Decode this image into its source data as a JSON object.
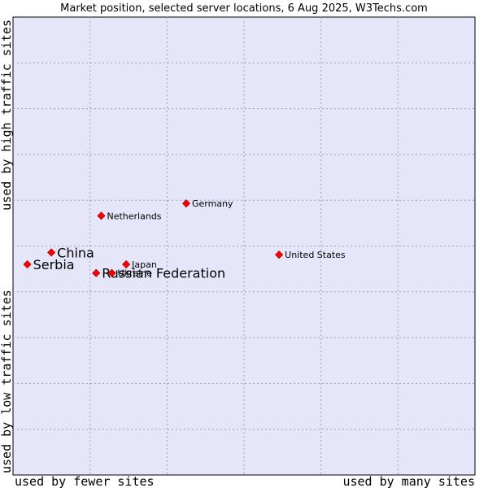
{
  "chart_data": {
    "type": "scatter",
    "title": "Market position, selected server locations, 6 Aug 2025, W3Techs.com",
    "xlabel_left": "used by fewer sites",
    "xlabel_right": "used by many sites",
    "ylabel_top": "used by high traffic sites",
    "ylabel_bottom": "used by low traffic sites",
    "xlim": [
      0,
      100
    ],
    "ylim": [
      0,
      100
    ],
    "grid": true,
    "point_color": "#ff0000",
    "plot_background": "#e6e6fa",
    "points": [
      {
        "label": "Germany",
        "x": 37.5,
        "y": 59.3,
        "emphasis": "normal"
      },
      {
        "label": "Netherlands",
        "x": 19.1,
        "y": 56.6,
        "emphasis": "normal"
      },
      {
        "label": "United States",
        "x": 57.6,
        "y": 48.1,
        "emphasis": "normal"
      },
      {
        "label": "China",
        "x": 8.3,
        "y": 48.6,
        "emphasis": "large"
      },
      {
        "label": "Serbia",
        "x": 3.1,
        "y": 46.0,
        "emphasis": "large"
      },
      {
        "label": "Japan",
        "x": 24.5,
        "y": 46.0,
        "emphasis": "normal"
      },
      {
        "label": "Russian Federation",
        "x": 18.0,
        "y": 44.1,
        "emphasis": "large"
      },
      {
        "label": "Ukraine",
        "x": 21.4,
        "y": 44.1,
        "emphasis": "normal"
      }
    ]
  }
}
